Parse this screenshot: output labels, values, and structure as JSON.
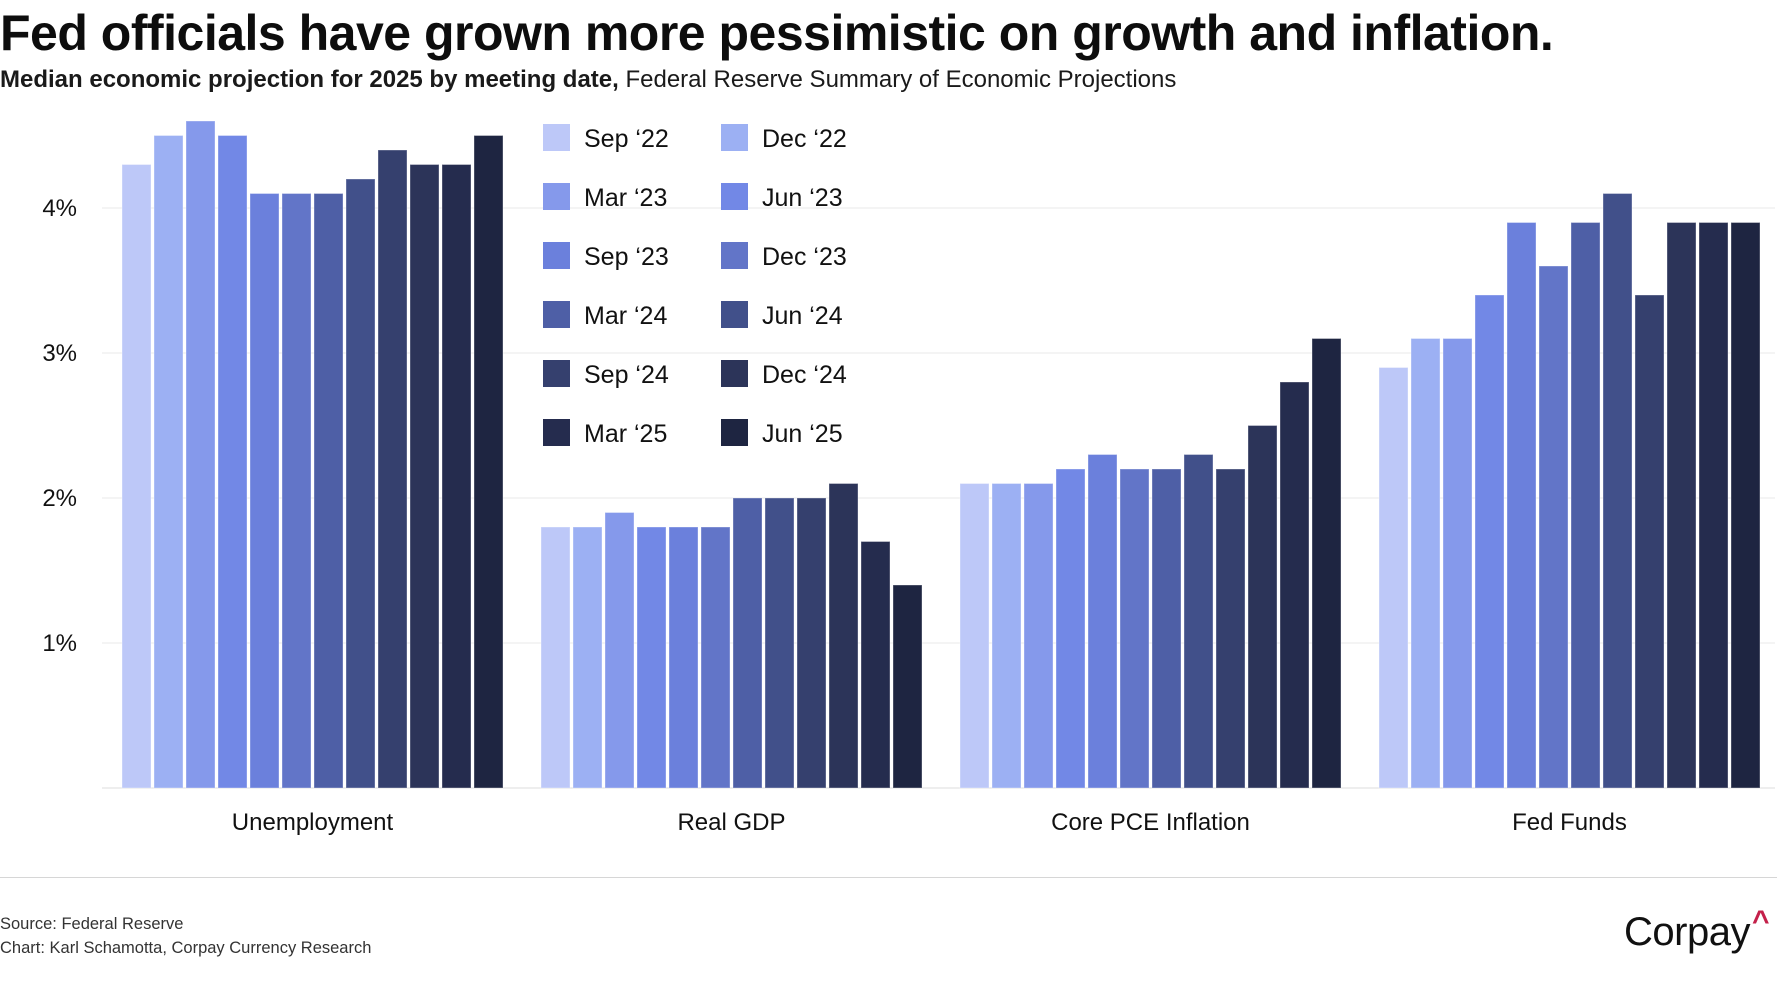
{
  "header": {
    "title": "Fed officials have grown more pessimistic on growth and inflation.",
    "subtitle_strong": "Median economic projection for 2025 by meeting date,",
    "subtitle_regular": " Federal Reserve Summary of Economic Projections"
  },
  "footer": {
    "source": "Source: Federal Reserve",
    "credit": "Chart: Karl Schamotta, Corpay Currency Research",
    "logo_text": "Corpay",
    "logo_mark": "^",
    "logo_mark_color": "#c4204a"
  },
  "chart_data": {
    "type": "bar",
    "title": "Fed officials have grown more pessimistic on growth and inflation.",
    "subtitle": "Median economic projection for 2025 by meeting date, Federal Reserve Summary of Economic Projections",
    "xlabel": "",
    "ylabel": "",
    "ylim": [
      0,
      4.7
    ],
    "yticks": [
      1,
      2,
      3,
      4
    ],
    "ytick_labels": [
      "1%",
      "2%",
      "3%",
      "4%"
    ],
    "grid": true,
    "legend_position": "top-center",
    "categories": [
      "Unemployment",
      "Real GDP",
      "Core PCE Inflation",
      "Fed Funds"
    ],
    "series": [
      {
        "name": "Sep ‘22",
        "color": "#BDC8F8",
        "values": [
          4.3,
          1.8,
          2.1,
          2.9
        ]
      },
      {
        "name": "Dec ‘22",
        "color": "#9CB0F3",
        "values": [
          4.5,
          1.8,
          2.1,
          3.1
        ]
      },
      {
        "name": "Mar ‘23",
        "color": "#8599EB",
        "values": [
          4.6,
          1.9,
          2.1,
          3.1
        ]
      },
      {
        "name": "Jun ‘23",
        "color": "#7288E6",
        "values": [
          4.5,
          1.8,
          2.2,
          3.4
        ]
      },
      {
        "name": "Sep ‘23",
        "color": "#6B80DC",
        "values": [
          4.1,
          1.8,
          2.3,
          3.9
        ]
      },
      {
        "name": "Dec ‘23",
        "color": "#6275C8",
        "values": [
          4.1,
          1.8,
          2.2,
          3.6
        ]
      },
      {
        "name": "Mar ‘24",
        "color": "#4E5FA6",
        "values": [
          4.1,
          2.0,
          2.2,
          3.9
        ]
      },
      {
        "name": "Jun ‘24",
        "color": "#41508A",
        "values": [
          4.2,
          2.0,
          2.3,
          4.1
        ]
      },
      {
        "name": "Sep ‘24",
        "color": "#35406E",
        "values": [
          4.4,
          2.0,
          2.2,
          3.4
        ]
      },
      {
        "name": "Dec ‘24",
        "color": "#2C3459",
        "values": [
          4.3,
          2.1,
          2.5,
          3.9
        ]
      },
      {
        "name": "Mar ‘25",
        "color": "#252C4E",
        "values": [
          4.3,
          1.7,
          2.8,
          3.9
        ]
      },
      {
        "name": "Jun ‘25",
        "color": "#1E2541",
        "values": [
          4.5,
          1.4,
          3.1,
          3.9
        ]
      }
    ]
  }
}
